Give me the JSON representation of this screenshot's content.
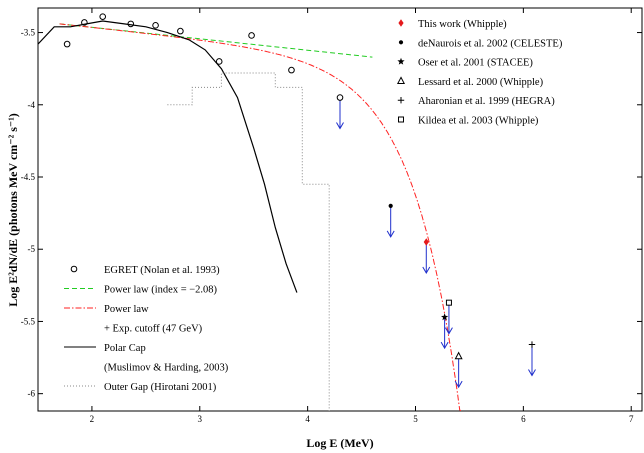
{
  "chart_data": {
    "type": "scatter",
    "xlabel": "Log E (MeV)",
    "ylabel": "Log E²dN/dE (photons MeV cm⁻² s⁻¹)",
    "xlim": [
      1.5,
      7.1
    ],
    "ylim": [
      -6.12,
      -3.33
    ],
    "x_ticks": [
      2,
      3,
      4,
      5,
      6,
      7
    ],
    "y_ticks": [
      -3.5,
      -4,
      -4.5,
      -5,
      -5.5,
      -6
    ],
    "x_tick_labels": [
      "2",
      "3",
      "4",
      "5",
      "6",
      "7"
    ],
    "y_tick_labels": [
      "-3.5",
      "-4",
      "-4.5",
      "-5",
      "-5.5",
      "-6"
    ],
    "grid": false,
    "legend_top": [
      {
        "label": "This work (Whipple)",
        "marker": "diamond",
        "color": "#e41a1c"
      },
      {
        "label": "deNaurois et al. 2002 (CELESTE)",
        "marker": "dot",
        "color": "#000000"
      },
      {
        "label": "Oser et al. 2001 (STACEE)",
        "marker": "star",
        "color": "#000000"
      },
      {
        "label": "Lessard et al. 2000 (Whipple)",
        "marker": "triangle",
        "color": "#000000"
      },
      {
        "label": "Aharonian et al. 1999 (HEGRA)",
        "marker": "plus",
        "color": "#000000"
      },
      {
        "label": "Kildea et al. 2003 (Whipple)",
        "marker": "square",
        "color": "#000000"
      }
    ],
    "legend_bottom": [
      {
        "label": "EGRET (Nolan et al. 1993)",
        "style": "circle-marker",
        "color": "#000000"
      },
      {
        "label": "Power law (index = −2.08)",
        "style": "dashed",
        "color": "#22cc22"
      },
      {
        "label": "Power law",
        "style": "dashdot",
        "color": "#ff2222"
      },
      {
        "label": "+ Exp. cutoff (47 GeV)",
        "style": "none",
        "color": "#000000"
      },
      {
        "label": "Polar Cap",
        "style": "solid",
        "color": "#000000"
      },
      {
        "label": "(Muslimov & Harding, 2003)",
        "style": "none",
        "color": "#000000"
      },
      {
        "label": "Outer Gap (Hirotani 2001)",
        "style": "dotted",
        "color": "#888888"
      }
    ],
    "series": [
      {
        "name": "EGRET (Nolan et al. 1993)",
        "kind": "open-circles",
        "x": [
          1.77,
          1.93,
          2.1,
          2.36,
          2.59,
          2.82,
          3.18,
          3.48,
          3.85
        ],
        "y": [
          -3.58,
          -3.43,
          -3.39,
          -3.44,
          -3.45,
          -3.49,
          -3.7,
          -3.52,
          -3.76
        ]
      },
      {
        "name": "Power law (index = −2.08)",
        "kind": "line",
        "color": "#22cc22",
        "x": [
          1.7,
          4.6
        ],
        "y": [
          -3.44,
          -3.67
        ]
      },
      {
        "name": "Power law + Exp. cutoff (47 GeV)",
        "kind": "curve",
        "color": "#ff2222",
        "model": {
          "type": "power-law-exp-cutoff",
          "index": -2.08,
          "cutoff_gev": 47,
          "norm_logE": 1.7,
          "norm_value": -3.44
        },
        "x_range": [
          1.7,
          5.42
        ]
      },
      {
        "name": "Polar Cap (Muslimov & Harding, 2003)",
        "kind": "line",
        "color": "#000000",
        "x": [
          1.5,
          1.65,
          1.8,
          1.95,
          2.1,
          2.3,
          2.5,
          2.7,
          2.9,
          3.05,
          3.2,
          3.35,
          3.5,
          3.6,
          3.7,
          3.8,
          3.9
        ],
        "y": [
          -3.58,
          -3.46,
          -3.46,
          -3.44,
          -3.42,
          -3.44,
          -3.46,
          -3.5,
          -3.55,
          -3.62,
          -3.75,
          -3.95,
          -4.3,
          -4.55,
          -4.85,
          -5.1,
          -5.3
        ]
      },
      {
        "name": "Outer Gap (Hirotani 2001)",
        "kind": "step",
        "color": "#888888",
        "x": [
          2.7,
          2.93,
          2.93,
          3.2,
          3.2,
          3.7,
          3.7,
          3.95,
          3.95,
          4.2,
          4.2
        ],
        "y": [
          -4.0,
          -4.0,
          -3.88,
          -3.88,
          -3.78,
          -3.78,
          -3.88,
          -3.88,
          -4.55,
          -4.55,
          -6.12
        ]
      },
      {
        "name": "This work (Whipple)",
        "kind": "point",
        "marker": "diamond",
        "color": "#e41a1c",
        "x": [
          5.1
        ],
        "y": [
          -4.95
        ]
      }
    ],
    "upper_limits": [
      {
        "marker": "circle",
        "x": 4.3,
        "y": -3.95
      },
      {
        "marker": "dot",
        "x": 4.77,
        "y": -4.7
      },
      {
        "marker": "diamond",
        "x": 5.1,
        "y": -4.95
      },
      {
        "marker": "star",
        "x": 5.27,
        "y": -5.47
      },
      {
        "marker": "square",
        "x": 5.31,
        "y": -5.37
      },
      {
        "marker": "triangle",
        "x": 5.4,
        "y": -5.74
      },
      {
        "marker": "plus",
        "x": 6.08,
        "y": -5.66
      }
    ]
  }
}
